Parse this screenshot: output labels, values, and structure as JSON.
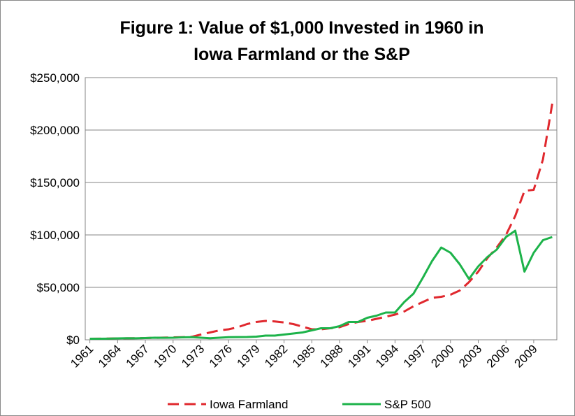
{
  "chart_data": {
    "type": "line",
    "title": [
      "Figure 1: Value of $1,000 Invested in 1960 in",
      "Iowa Farmland or the S&P"
    ],
    "categories": [
      "1961",
      null,
      null,
      "1964",
      null,
      null,
      "1967",
      null,
      null,
      "1970",
      null,
      null,
      "1973",
      null,
      null,
      "1976",
      null,
      null,
      "1979",
      null,
      null,
      "1982",
      null,
      null,
      "1985",
      null,
      null,
      "1988",
      null,
      null,
      "1991",
      null,
      null,
      "1994",
      null,
      null,
      "1997",
      null,
      null,
      "2000",
      null,
      null,
      "2003",
      null,
      null,
      "2006",
      null,
      null,
      "2009",
      null,
      null
    ],
    "series": [
      {
        "name": "Iowa Farmland",
        "color": "#e0282e",
        "dashed": true,
        "values": [
          1000,
          1100,
          1200,
          1300,
          1400,
          1500,
          1700,
          1900,
          2100,
          2300,
          2500,
          2800,
          5000,
          7000,
          9000,
          10000,
          12000,
          15000,
          17000,
          18000,
          17500,
          16500,
          15000,
          12500,
          10000,
          10000,
          11000,
          12000,
          15000,
          17000,
          18000,
          20000,
          22000,
          24000,
          27000,
          32000,
          36000,
          40000,
          41000,
          43000,
          47000,
          55000,
          65000,
          78000,
          88000,
          100000,
          118000,
          142000,
          143000,
          172000,
          225000
        ]
      },
      {
        "name": "S&P 500",
        "color": "#1db34a",
        "dashed": false,
        "values": [
          1000,
          1000,
          1100,
          1300,
          1500,
          1400,
          1700,
          2000,
          1900,
          2000,
          2300,
          2500,
          2000,
          1500,
          2000,
          2500,
          2600,
          2700,
          3000,
          4000,
          4000,
          5000,
          6000,
          7000,
          9000,
          11000,
          11000,
          13000,
          17000,
          17000,
          21000,
          23000,
          26000,
          26000,
          36000,
          44000,
          59000,
          75000,
          88000,
          83000,
          72000,
          58000,
          70000,
          79000,
          86000,
          98000,
          104000,
          65000,
          83000,
          95000,
          98000
        ]
      }
    ],
    "ylim": [
      0,
      250000
    ],
    "yticks": [
      {
        "value": 0,
        "label": "$0"
      },
      {
        "value": 50000,
        "label": "$50,000"
      },
      {
        "value": 100000,
        "label": "$100,000"
      },
      {
        "value": 150000,
        "label": "$150,000"
      },
      {
        "value": 200000,
        "label": "$200,000"
      },
      {
        "value": 250000,
        "label": "$250,000"
      }
    ],
    "grid": true
  }
}
